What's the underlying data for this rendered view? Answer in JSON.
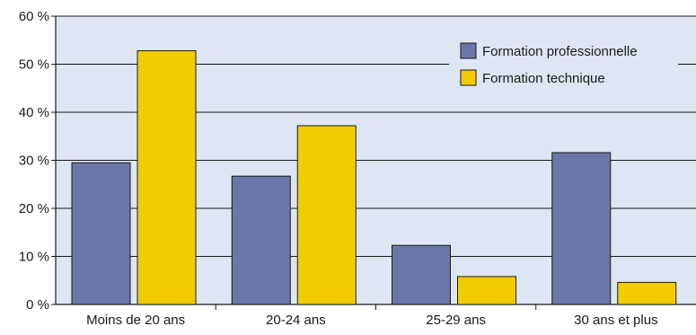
{
  "chart_data": {
    "type": "bar",
    "categories": [
      "Moins de 20 ans",
      "20-24 ans",
      "25-29 ans",
      "30 ans et plus"
    ],
    "series": [
      {
        "name": "Formation professionnelle",
        "color": "#6b76a8",
        "values": [
          29.5,
          26.7,
          12.3,
          31.6
        ]
      },
      {
        "name": "Formation technique",
        "color": "#f2cc00",
        "values": [
          52.8,
          37.2,
          5.8,
          4.6
        ]
      }
    ],
    "y_ticks": [
      "0 %",
      "10 %",
      "20 %",
      "30 %",
      "40 %",
      "50 %",
      "60 %"
    ],
    "ylim": [
      0,
      60
    ],
    "plot_background": "#dde6f2",
    "grid": true,
    "legend_position": "top-right"
  }
}
